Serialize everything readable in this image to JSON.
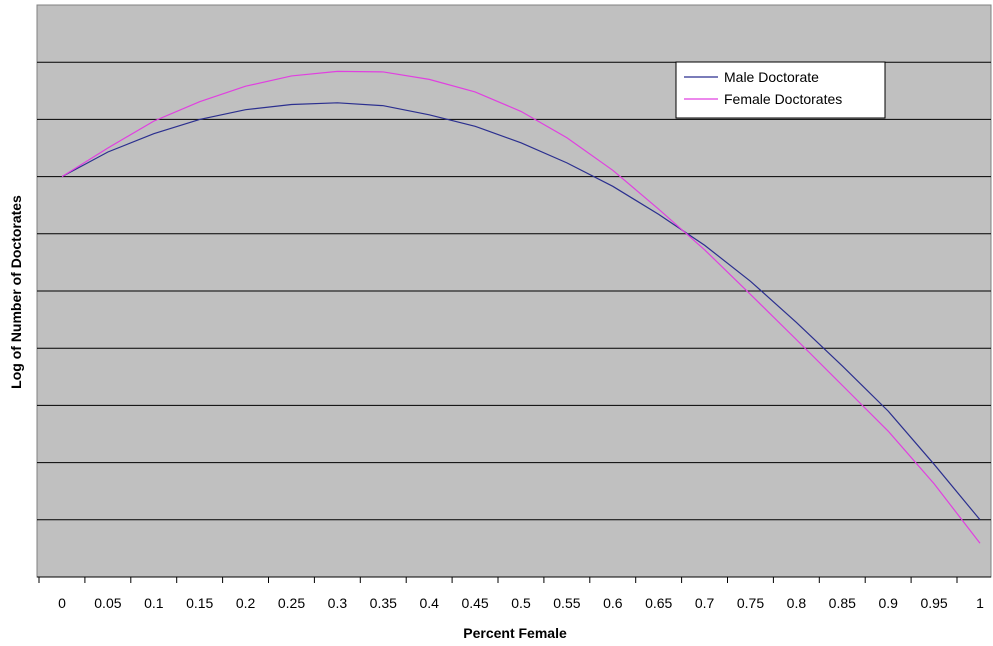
{
  "chart_data": {
    "type": "line",
    "title": "",
    "xlabel": "Percent Female",
    "ylabel": "Log of Number of Doctorates",
    "categories": [
      "0",
      "0.05",
      "0.1",
      "0.15",
      "0.2",
      "0.25",
      "0.3",
      "0.35",
      "0.4",
      "0.45",
      "0.5",
      "0.55",
      "0.6",
      "0.65",
      "0.7",
      "0.75",
      "0.8",
      "0.85",
      "0.9",
      "0.95",
      "1"
    ],
    "x": [
      0,
      0.05,
      0.1,
      0.15,
      0.2,
      0.25,
      0.3,
      0.35,
      0.4,
      0.45,
      0.5,
      0.55,
      0.6,
      0.65,
      0.7,
      0.75,
      0.8,
      0.85,
      0.9,
      0.95,
      1
    ],
    "ylim": [
      0,
      10
    ],
    "grid": "horizontal",
    "legend_position": "top-right",
    "series": [
      {
        "name": "Male Doctorate",
        "color": "#2B2F8F",
        "values": [
          7.0,
          7.43,
          7.75,
          8.0,
          8.17,
          8.26,
          8.29,
          8.24,
          8.08,
          7.88,
          7.59,
          7.24,
          6.83,
          6.34,
          5.8,
          5.17,
          4.45,
          3.69,
          2.9,
          1.97,
          1.0
        ]
      },
      {
        "name": "Female Doctorates",
        "color": "#E040E0",
        "values": [
          7.0,
          7.5,
          7.97,
          8.31,
          8.58,
          8.76,
          8.84,
          8.83,
          8.7,
          8.48,
          8.14,
          7.68,
          7.11,
          6.43,
          5.72,
          4.94,
          4.15,
          3.35,
          2.55,
          1.63,
          0.59
        ]
      }
    ]
  }
}
